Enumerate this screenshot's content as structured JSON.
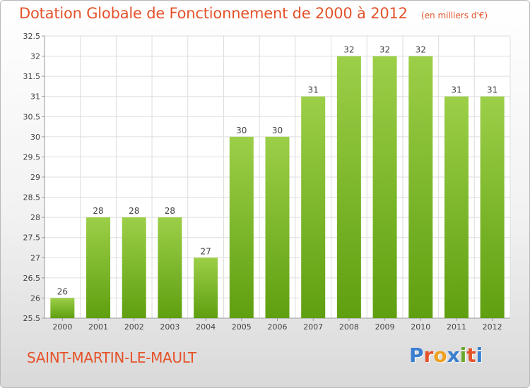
{
  "header": {
    "title": "Dotation Globale de Fonctionnement de 2000 à 2012",
    "unit": "(en milliers d'€)"
  },
  "footer": {
    "commune": "SAINT-MARTIN-LE-MAULT",
    "logo": "Proxiti"
  },
  "colors": {
    "title": "#e4532a",
    "bar_top": "#9ccf48",
    "bar_bottom": "#5f9f10",
    "grid": "#dddddd",
    "logo_letters": [
      "#3a7fd0",
      "#e4532a",
      "#f0a020",
      "#3a7fd0",
      "#6aa82a",
      "#e4532a",
      "#3a7fd0"
    ]
  },
  "chart_data": {
    "type": "bar",
    "title": "Dotation Globale de Fonctionnement de 2000 à 2012",
    "subtitle": "(en milliers d'€)",
    "xlabel": "",
    "ylabel": "",
    "categories": [
      "2000",
      "2001",
      "2002",
      "2003",
      "2004",
      "2005",
      "2006",
      "2007",
      "2008",
      "2009",
      "2010",
      "2011",
      "2012"
    ],
    "values": [
      26,
      28,
      28,
      28,
      27,
      30,
      30,
      31,
      32,
      32,
      32,
      31,
      31
    ],
    "ylim": [
      25.5,
      32.5
    ],
    "yticks": [
      "25.5",
      "26",
      "26.5",
      "27",
      "27.5",
      "28",
      "28.5",
      "29",
      "29.5",
      "30",
      "30.5",
      "31",
      "31.5",
      "32",
      "32.5"
    ],
    "grid": true,
    "legend": "none"
  }
}
